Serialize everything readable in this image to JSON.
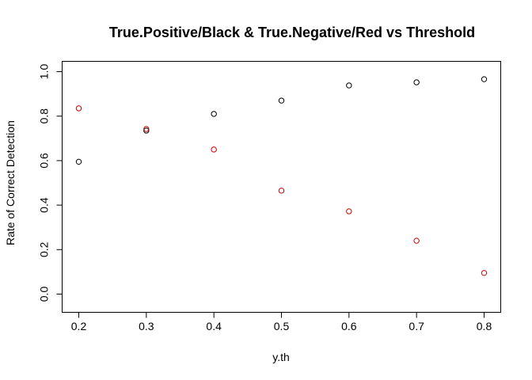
{
  "chart_data": {
    "type": "scatter",
    "title": "True.Positive/Black & True.Negative/Red vs Threshold",
    "xlabel": "y.th",
    "ylabel": "Rate of Correct Detection",
    "xlim": [
      0.2,
      0.8
    ],
    "ylim": [
      0.0,
      1.0
    ],
    "x_ticks": [
      "0.2",
      "0.3",
      "0.4",
      "0.5",
      "0.6",
      "0.7",
      "0.8"
    ],
    "y_ticks": [
      "0.0",
      "0.2",
      "0.4",
      "0.6",
      "0.8",
      "1.0"
    ],
    "grid": false,
    "legend": "none",
    "x": [
      0.2,
      0.3,
      0.4,
      0.5,
      0.6,
      0.7,
      0.8
    ],
    "series": [
      {
        "color": "#000000",
        "marker": "open-circle",
        "values": [
          0.595,
          0.735,
          0.81,
          0.87,
          0.938,
          0.952,
          0.966
        ]
      },
      {
        "color": "#cc0000",
        "marker": "open-circle",
        "values": [
          0.835,
          0.742,
          0.65,
          0.465,
          0.372,
          0.24,
          0.095
        ]
      }
    ]
  }
}
